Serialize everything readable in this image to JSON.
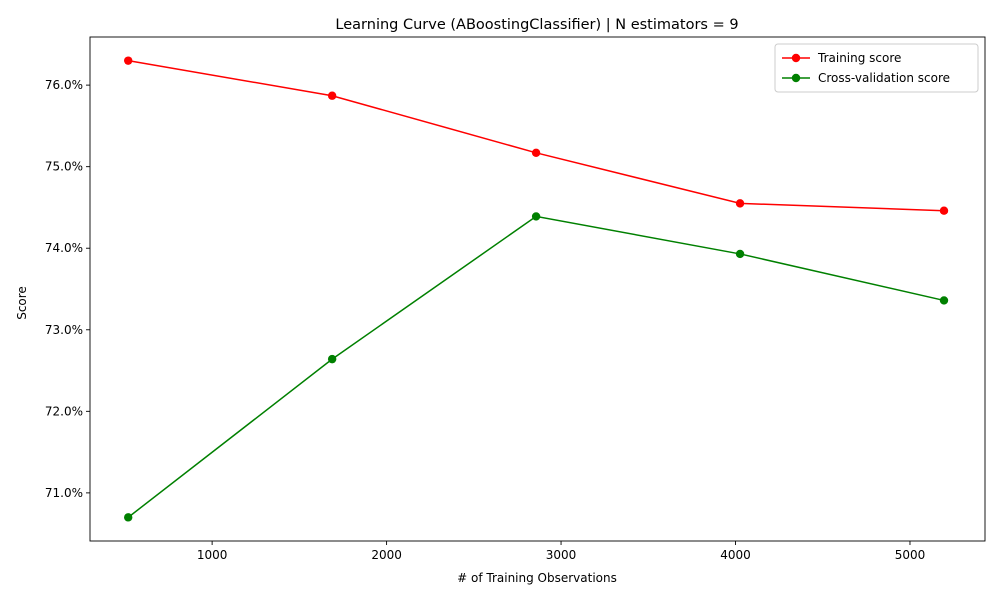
{
  "chart_data": {
    "type": "line",
    "title": "Learning Curve (ABoostingClassifier) | N estimators = 9",
    "xlabel": "# of Training Observations",
    "ylabel": "Score",
    "x": [
      519,
      1688,
      2857,
      4026,
      5195
    ],
    "series": [
      {
        "name": "Training score",
        "color": "#ff0000",
        "values": [
          0.763,
          0.7587,
          0.7517,
          0.7455,
          0.7446
        ]
      },
      {
        "name": "Cross-validation score",
        "color": "#008000",
        "values": [
          0.707,
          0.7264,
          0.7439,
          0.7393,
          0.7336
        ]
      }
    ],
    "xlim": [
      300,
      5430
    ],
    "ylim": [
      0.7041,
      0.7659
    ],
    "xticks": [
      1000,
      2000,
      3000,
      4000,
      5000
    ],
    "xtick_labels": [
      "1000",
      "2000",
      "3000",
      "4000",
      "5000"
    ],
    "yticks": [
      0.71,
      0.72,
      0.73,
      0.74,
      0.75,
      0.76
    ],
    "ytick_labels": [
      "71.0%",
      "72.0%",
      "73.0%",
      "74.0%",
      "75.0%",
      "76.0%"
    ],
    "grid": false,
    "legend_position": "top-right",
    "marker": "circle"
  }
}
